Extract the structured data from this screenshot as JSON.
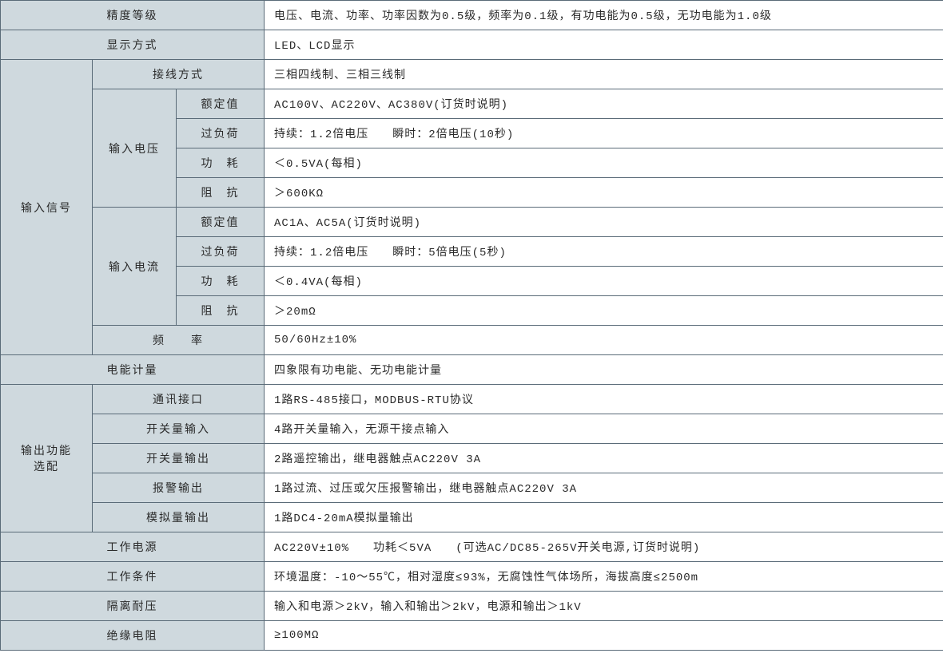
{
  "table": {
    "background_header": "#cfd9de",
    "background_value": "#ffffff",
    "border_color": "#5a6b78",
    "text_color": "#2a2a2a",
    "font_size": 14,
    "rows": [
      {
        "h1": "精度等级",
        "h1span": 3,
        "val": "电压、电流、功率、功率因数为0.5级，频率为0.1级，有功电能为0.5级，无功电能为1.0级"
      },
      {
        "h1": "显示方式",
        "h1span": 3,
        "val": "LED、LCD显示"
      },
      {
        "h1": "输入信号",
        "h1rows": 10,
        "h2": "接线方式",
        "h2span": 2,
        "val": "三相四线制、三相三线制"
      },
      {
        "h2": "输入电压",
        "h2rows": 4,
        "h3": "额定值",
        "val": "AC100V、AC220V、AC380V(订货时说明)"
      },
      {
        "h3": "过负荷",
        "val": "持续：1.2倍电压　　瞬时：2倍电压(10秒)"
      },
      {
        "h3": "功　耗",
        "val": "＜0.5VA(每相)"
      },
      {
        "h3": "阻　抗",
        "val": "＞600KΩ"
      },
      {
        "h2": "输入电流",
        "h2rows": 4,
        "h3": "额定值",
        "val": "AC1A、AC5A(订货时说明)"
      },
      {
        "h3": "过负荷",
        "val": "持续：1.2倍电压　　瞬时：5倍电压(5秒)"
      },
      {
        "h3": "功　耗",
        "val": "＜0.4VA(每相)"
      },
      {
        "h3": "阻　抗",
        "val": "＞20mΩ"
      },
      {
        "h2": "频　　率",
        "h2span": 2,
        "val": "50/60Hz±10%"
      },
      {
        "h1": "电能计量",
        "h1span": 3,
        "val": "四象限有功电能、无功电能计量"
      },
      {
        "h1": "输出功能\n选配",
        "h1rows": 5,
        "h2": "通讯接口",
        "h2span": 2,
        "val": "1路RS-485接口，MODBUS-RTU协议"
      },
      {
        "h2": "开关量输入",
        "h2span": 2,
        "val": "4路开关量输入，无源干接点输入"
      },
      {
        "h2": "开关量输出",
        "h2span": 2,
        "val": "2路遥控输出，继电器触点AC220V 3A"
      },
      {
        "h2": "报警输出",
        "h2span": 2,
        "val": "1路过流、过压或欠压报警输出，继电器触点AC220V 3A"
      },
      {
        "h2": "模拟量输出",
        "h2span": 2,
        "val": "1路DC4-20mA模拟量输出"
      },
      {
        "h1": "工作电源",
        "h1span": 3,
        "val": "AC220V±10%　　功耗＜5VA　　(可选AC/DC85-265V开关电源,订货时说明)"
      },
      {
        "h1": "工作条件",
        "h1span": 3,
        "val": "环境温度：-10～55℃，相对湿度≤93%，无腐蚀性气体场所，海拔高度≤2500m"
      },
      {
        "h1": "隔离耐压",
        "h1span": 3,
        "val": "输入和电源＞2kV，输入和输出＞2kV，电源和输出＞1kV"
      },
      {
        "h1": "绝缘电阻",
        "h1span": 3,
        "val": "≥100MΩ"
      }
    ]
  }
}
